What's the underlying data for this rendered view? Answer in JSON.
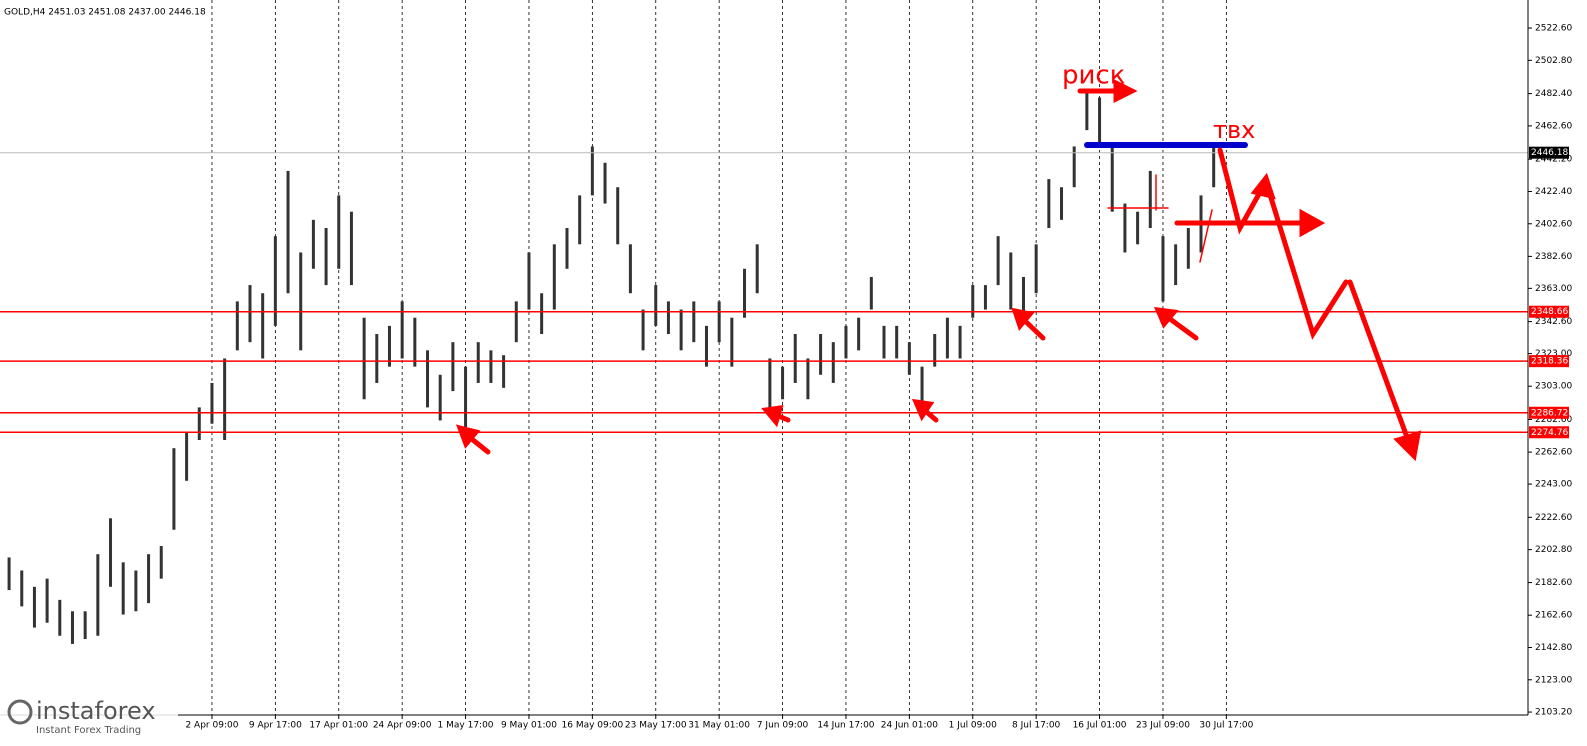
{
  "chart_data": {
    "type": "ohlc",
    "title": "GOLD,H4  2451.03 2451.08 2437.00 2446.18",
    "color": "#333333",
    "high": [
      2198,
      2190,
      2180,
      2185,
      2172,
      2165,
      2165,
      2200,
      2222,
      2195,
      2190,
      2200,
      2205,
      2265,
      2275,
      2290,
      2305,
      2320,
      2355,
      2365,
      2360,
      2395,
      2435,
      2385,
      2405,
      2400,
      2420,
      2410,
      2345,
      2335,
      2340,
      2355,
      2345,
      2325,
      2310,
      2330,
      2315,
      2330,
      2325,
      2322,
      2355,
      2385,
      2360,
      2390,
      2400,
      2420,
      2450,
      2440,
      2425,
      2390,
      2350,
      2365,
      2355,
      2350,
      2355,
      2340,
      2355,
      2345,
      2375,
      2390,
      2320,
      2315,
      2335,
      2320,
      2335,
      2330,
      2340,
      2345,
      2370,
      2340,
      2340,
      2330,
      2315,
      2335,
      2345,
      2340,
      2365,
      2365,
      2395,
      2385,
      2370,
      2390,
      2430,
      2425,
      2450,
      2485,
      2480,
      2450,
      2415,
      2410,
      2435,
      2395,
      2390,
      2400,
      2420,
      2450
    ],
    "low": [
      2178,
      2168,
      2155,
      2158,
      2150,
      2145,
      2148,
      2150,
      2180,
      2163,
      2165,
      2170,
      2185,
      2215,
      2245,
      2270,
      2280,
      2270,
      2325,
      2330,
      2320,
      2340,
      2360,
      2325,
      2375,
      2365,
      2375,
      2365,
      2295,
      2305,
      2315,
      2320,
      2315,
      2290,
      2282,
      2300,
      2278,
      2305,
      2305,
      2302,
      2330,
      2350,
      2335,
      2350,
      2375,
      2390,
      2420,
      2415,
      2390,
      2360,
      2325,
      2340,
      2335,
      2325,
      2330,
      2315,
      2330,
      2315,
      2345,
      2360,
      2285,
      2295,
      2305,
      2295,
      2310,
      2305,
      2320,
      2325,
      2350,
      2320,
      2320,
      2310,
      2290,
      2315,
      2320,
      2320,
      2345,
      2350,
      2365,
      2350,
      2345,
      2360,
      2400,
      2405,
      2425,
      2460,
      2450,
      2410,
      2385,
      2390,
      2400,
      2355,
      2365,
      2375,
      2385,
      2425
    ],
    "xticks": [
      {
        "value": 16,
        "label": "2 Apr 09:00"
      },
      {
        "value": 21,
        "label": "9 Apr 17:00"
      },
      {
        "value": 26,
        "label": "17 Apr 01:00"
      },
      {
        "value": 31,
        "label": "24 Apr 09:00"
      },
      {
        "value": 36,
        "label": "1 May 17:00"
      },
      {
        "value": 41,
        "label": "9 May 01:00"
      },
      {
        "value": 46,
        "label": "16 May 09:00"
      },
      {
        "value": 51,
        "label": "23 May 17:00"
      },
      {
        "value": 56,
        "label": "31 May 01:00"
      },
      {
        "value": 61,
        "label": "7 Jun 09:00"
      },
      {
        "value": 66,
        "label": "14 Jun 17:00"
      },
      {
        "value": 71,
        "label": "24 Jun 01:00"
      },
      {
        "value": 76,
        "label": "1 Jul 09:00"
      },
      {
        "value": 81,
        "label": "8 Jul 17:00"
      },
      {
        "value": 86,
        "label": "16 Jul 01:00"
      },
      {
        "value": 91,
        "label": "23 Jul 09:00"
      },
      {
        "value": 96,
        "label": "30 Jul 17:00"
      }
    ],
    "ylim": [
      2101.4,
      2539.8
    ],
    "yticks": [
      {
        "value": 2522.6,
        "label": "2522.60"
      },
      {
        "value": 2502.8,
        "label": "2502.80"
      },
      {
        "value": 2482.4,
        "label": "2482.40"
      },
      {
        "value": 2462.6,
        "label": "2462.60"
      },
      {
        "value": 2442.2,
        "label": "2442.20"
      },
      {
        "value": 2422.4,
        "label": "2422.40"
      },
      {
        "value": 2402.6,
        "label": "2402.60"
      },
      {
        "value": 2382.6,
        "label": "2382.60"
      },
      {
        "value": 2363.0,
        "label": "2363.00"
      },
      {
        "value": 2342.6,
        "label": "2342.60"
      },
      {
        "value": 2323.0,
        "label": "2323.00"
      },
      {
        "value": 2303.0,
        "label": "2303.00"
      },
      {
        "value": 2282.6,
        "label": "2282.60"
      },
      {
        "value": 2262.6,
        "label": "2262.60"
      },
      {
        "value": 2243.0,
        "label": "2243.00"
      },
      {
        "value": 2222.6,
        "label": "2222.60"
      },
      {
        "value": 2202.8,
        "label": "2202.80"
      },
      {
        "value": 2182.6,
        "label": "2182.60"
      },
      {
        "value": 2162.6,
        "label": "2162.60"
      },
      {
        "value": 2142.8,
        "label": "2142.80"
      },
      {
        "value": 2123.0,
        "label": "2123.00"
      },
      {
        "value": 2103.2,
        "label": "2103.20"
      }
    ],
    "levels": [
      2348.66,
      2318.36,
      2286.72,
      2274.76
    ],
    "level_color": "#ff0000",
    "last_price": 2446.18,
    "annotations": [
      "риск",
      "твх"
    ],
    "watermark": {
      "brand": "instaforex",
      "tagline": "Instant Forex Trading"
    }
  }
}
